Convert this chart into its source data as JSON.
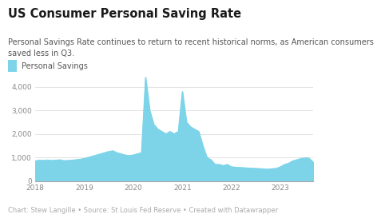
{
  "title": "US Consumer Personal Saving Rate",
  "subtitle": "Personal Savings Rate continues to return to recent historical norms, as American consumers\nsaved less in Q3.",
  "legend_label": "Personal Savings",
  "footer": "Chart: Stew Langille • Source: St Louis Fed Reserve • Created with Datawrapper",
  "area_color": "#7dd4e8",
  "area_alpha": 1.0,
  "background_color": "#ffffff",
  "title_fontsize": 10.5,
  "subtitle_fontsize": 7.0,
  "legend_fontsize": 7.0,
  "footer_fontsize": 6.0,
  "tick_fontsize": 6.5,
  "ylim": [
    0,
    4600
  ],
  "yticks": [
    0,
    1000,
    2000,
    3000,
    4000
  ],
  "values": [
    850,
    880,
    870,
    890,
    870,
    880,
    900,
    860,
    870,
    880,
    900,
    920,
    950,
    1000,
    1050,
    1100,
    1150,
    1200,
    1250,
    1280,
    1200,
    1150,
    1100,
    1080,
    1100,
    1150,
    1200,
    4400,
    3000,
    2400,
    2200,
    2100,
    2000,
    2100,
    2000,
    2100,
    3800,
    2500,
    2300,
    2200,
    2100,
    1500,
    1000,
    900,
    700,
    700,
    650,
    700,
    600,
    580,
    570,
    560,
    550,
    540,
    530,
    520,
    510,
    500,
    520,
    530,
    600,
    700,
    750,
    850,
    900,
    950,
    980,
    960,
    800
  ],
  "xtick_positions": [
    0,
    12,
    24,
    36,
    48,
    60
  ],
  "xtick_labels": [
    "2018",
    "2019",
    "2020",
    "2021",
    "2022",
    "2023"
  ]
}
